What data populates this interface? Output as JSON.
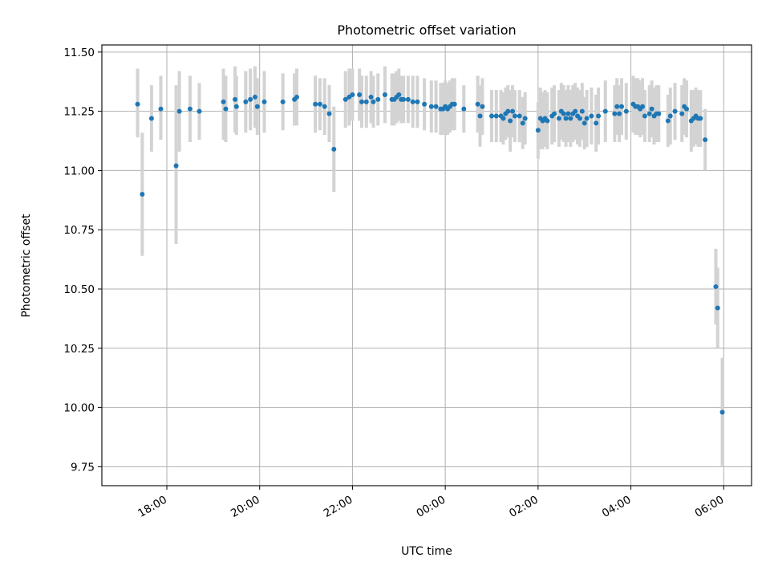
{
  "chart_data": {
    "type": "scatter",
    "title": "Photometric offset variation",
    "xlabel": "UTC time",
    "ylabel": "Photometric offset",
    "xlim_hours": [
      16.6,
      30.6
    ],
    "ylim": [
      9.67,
      11.53
    ],
    "grid": true,
    "x_ticks": [
      {
        "hours": 18,
        "label": "18:00"
      },
      {
        "hours": 20,
        "label": "20:00"
      },
      {
        "hours": 22,
        "label": "22:00"
      },
      {
        "hours": 24,
        "label": "00:00"
      },
      {
        "hours": 26,
        "label": "02:00"
      },
      {
        "hours": 28,
        "label": "04:00"
      },
      {
        "hours": 30,
        "label": "06:00"
      }
    ],
    "y_ticks": [
      {
        "value": 9.75,
        "label": "9.75"
      },
      {
        "value": 10.0,
        "label": "10.00"
      },
      {
        "value": 10.25,
        "label": "10.25"
      },
      {
        "value": 10.5,
        "label": "10.50"
      },
      {
        "value": 10.75,
        "label": "10.75"
      },
      {
        "value": 11.0,
        "label": "11.00"
      },
      {
        "value": 11.25,
        "label": "11.25"
      },
      {
        "value": 11.5,
        "label": "11.50"
      }
    ],
    "point_color": "#1f77b4",
    "errorbar_color": "#d3d3d3",
    "series": [
      {
        "name": "offset",
        "x_hours": [
          17.37,
          17.47,
          17.67,
          17.87,
          18.2,
          18.27,
          18.5,
          18.7,
          19.22,
          19.27,
          19.47,
          19.5,
          19.7,
          19.8,
          19.9,
          19.95,
          20.1,
          20.5,
          20.75,
          20.8,
          21.2,
          21.3,
          21.4,
          21.5,
          21.6,
          21.85,
          21.93,
          22.0,
          22.15,
          22.2,
          22.3,
          22.4,
          22.45,
          22.55,
          22.7,
          22.85,
          22.9,
          22.95,
          23.0,
          23.05,
          23.1,
          23.2,
          23.3,
          23.4,
          23.55,
          23.7,
          23.8,
          23.9,
          23.95,
          24.0,
          24.05,
          24.1,
          24.15,
          24.2,
          24.4,
          24.7,
          24.75,
          24.8,
          25.0,
          25.1,
          25.2,
          25.25,
          25.3,
          25.35,
          25.4,
          25.45,
          25.5,
          25.6,
          25.67,
          25.72,
          26.0,
          26.05,
          26.1,
          26.15,
          26.2,
          26.3,
          26.35,
          26.45,
          26.5,
          26.55,
          26.6,
          26.65,
          26.7,
          26.75,
          26.8,
          26.85,
          26.9,
          26.95,
          27.0,
          27.05,
          27.15,
          27.25,
          27.3,
          27.45,
          27.65,
          27.7,
          27.75,
          27.8,
          27.9,
          28.05,
          28.1,
          28.15,
          28.2,
          28.25,
          28.3,
          28.4,
          28.45,
          28.5,
          28.55,
          28.6,
          28.8,
          28.85,
          28.95,
          29.1,
          29.15,
          29.2,
          29.3,
          29.35,
          29.4,
          29.45,
          29.5,
          29.6,
          29.83,
          29.87,
          29.97
        ],
        "values": [
          11.28,
          10.9,
          11.22,
          11.26,
          11.02,
          11.25,
          11.26,
          11.25,
          11.29,
          11.26,
          11.3,
          11.27,
          11.29,
          11.3,
          11.31,
          11.27,
          11.29,
          11.29,
          11.3,
          11.31,
          11.28,
          11.28,
          11.27,
          11.24,
          11.09,
          11.3,
          11.31,
          11.32,
          11.32,
          11.29,
          11.29,
          11.31,
          11.29,
          11.3,
          11.32,
          11.3,
          11.3,
          11.31,
          11.32,
          11.3,
          11.3,
          11.3,
          11.29,
          11.29,
          11.28,
          11.27,
          11.27,
          11.26,
          11.26,
          11.27,
          11.26,
          11.27,
          11.28,
          11.28,
          11.26,
          11.28,
          11.23,
          11.27,
          11.23,
          11.23,
          11.23,
          11.22,
          11.24,
          11.25,
          11.21,
          11.25,
          11.23,
          11.23,
          11.2,
          11.22,
          11.17,
          11.22,
          11.21,
          11.22,
          11.21,
          11.23,
          11.24,
          11.22,
          11.25,
          11.24,
          11.22,
          11.24,
          11.22,
          11.24,
          11.25,
          11.23,
          11.22,
          11.25,
          11.2,
          11.22,
          11.23,
          11.2,
          11.23,
          11.25,
          11.24,
          11.27,
          11.24,
          11.27,
          11.25,
          11.28,
          11.27,
          11.27,
          11.26,
          11.27,
          11.23,
          11.24,
          11.26,
          11.23,
          11.24,
          11.24,
          11.21,
          11.23,
          11.25,
          11.24,
          11.27,
          11.26,
          11.21,
          11.22,
          11.23,
          11.22,
          11.22,
          11.13,
          10.51,
          10.42,
          9.98
        ],
        "err_low": [
          11.14,
          10.64,
          11.08,
          11.13,
          10.69,
          11.08,
          11.12,
          11.13,
          11.13,
          11.12,
          11.16,
          11.15,
          11.16,
          11.17,
          11.18,
          11.15,
          11.16,
          11.17,
          11.19,
          11.19,
          11.16,
          11.17,
          11.15,
          11.12,
          10.91,
          11.18,
          11.19,
          11.21,
          11.21,
          11.18,
          11.18,
          11.2,
          11.18,
          11.19,
          11.2,
          11.19,
          11.19,
          11.2,
          11.21,
          11.2,
          11.2,
          11.2,
          11.18,
          11.18,
          11.17,
          11.16,
          11.16,
          11.15,
          11.15,
          11.16,
          11.15,
          11.16,
          11.17,
          11.17,
          11.16,
          11.16,
          11.1,
          11.15,
          11.12,
          11.12,
          11.12,
          11.11,
          11.13,
          11.14,
          11.08,
          11.14,
          11.12,
          11.12,
          11.09,
          11.11,
          11.05,
          11.09,
          11.09,
          11.1,
          11.09,
          11.11,
          11.12,
          11.1,
          11.13,
          11.12,
          11.1,
          11.12,
          11.1,
          11.12,
          11.13,
          11.11,
          11.1,
          11.13,
          11.09,
          11.1,
          11.11,
          11.08,
          11.11,
          11.12,
          11.12,
          11.15,
          11.12,
          11.15,
          11.13,
          11.16,
          11.15,
          11.15,
          11.14,
          11.15,
          11.12,
          11.12,
          11.14,
          11.11,
          11.12,
          11.12,
          11.1,
          11.11,
          11.13,
          11.12,
          11.15,
          11.14,
          11.08,
          11.1,
          11.11,
          11.1,
          11.1,
          11.0,
          10.35,
          10.25,
          9.75
        ],
        "err_high": [
          11.43,
          11.16,
          11.36,
          11.4,
          11.36,
          11.42,
          11.4,
          11.37,
          11.43,
          11.4,
          11.44,
          11.4,
          11.42,
          11.43,
          11.44,
          11.39,
          11.42,
          11.41,
          11.41,
          11.43,
          11.4,
          11.39,
          11.39,
          11.36,
          11.27,
          11.42,
          11.43,
          11.43,
          11.43,
          11.4,
          11.4,
          11.42,
          11.4,
          11.41,
          11.44,
          11.41,
          11.41,
          11.42,
          11.43,
          11.4,
          11.4,
          11.4,
          11.4,
          11.4,
          11.39,
          11.38,
          11.38,
          11.37,
          11.37,
          11.38,
          11.37,
          11.38,
          11.39,
          11.39,
          11.36,
          11.4,
          11.36,
          11.39,
          11.34,
          11.34,
          11.34,
          11.33,
          11.35,
          11.36,
          11.34,
          11.36,
          11.34,
          11.34,
          11.31,
          11.33,
          11.29,
          11.35,
          11.33,
          11.34,
          11.33,
          11.35,
          11.36,
          11.34,
          11.37,
          11.36,
          11.34,
          11.36,
          11.34,
          11.36,
          11.37,
          11.35,
          11.34,
          11.37,
          11.31,
          11.34,
          11.35,
          11.32,
          11.35,
          11.38,
          11.36,
          11.39,
          11.36,
          11.39,
          11.37,
          11.4,
          11.39,
          11.39,
          11.38,
          11.39,
          11.34,
          11.36,
          11.38,
          11.35,
          11.36,
          11.36,
          11.32,
          11.35,
          11.37,
          11.36,
          11.39,
          11.38,
          11.34,
          11.34,
          11.35,
          11.34,
          11.34,
          11.26,
          10.67,
          10.59,
          10.21
        ]
      }
    ]
  }
}
